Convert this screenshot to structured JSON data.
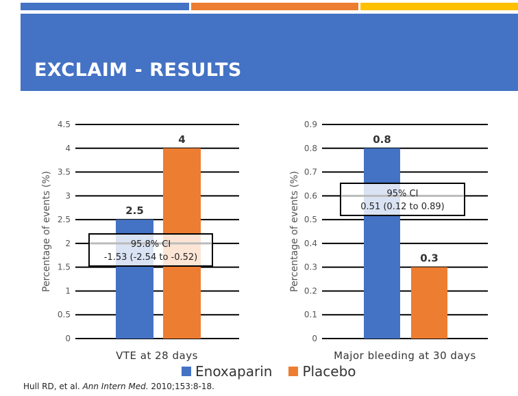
{
  "slide": {
    "title": "EXCLAIM - RESULTS"
  },
  "colors": {
    "accent_blue": "#4472C4",
    "accent_orange": "#ED7D31",
    "accent_yellow": "#FFC000",
    "enoxaparin": "#4472C4",
    "placebo": "#ED7D31"
  },
  "legend": [
    {
      "name": "Enoxaparin",
      "color": "#4472C4"
    },
    {
      "name": "Placebo",
      "color": "#ED7D31"
    }
  ],
  "citation": {
    "authors": "Hull RD, et al.",
    "journal": "Ann Intern Med.",
    "details": "2010;153:8-18."
  },
  "chart_data": [
    {
      "type": "bar",
      "title": "",
      "xlabel": "VTE at 28 days",
      "ylabel": "Percentage of events (%)",
      "ylim": [
        0,
        4.5
      ],
      "yticks": [
        0,
        0.5,
        1,
        1.5,
        2,
        2.5,
        3,
        3.5,
        4,
        4.5
      ],
      "ytick_labels": [
        "0",
        "0.5",
        "1",
        "1.5",
        "2",
        "2.5",
        "3",
        "3.5",
        "4",
        "4.5"
      ],
      "grid": true,
      "series": [
        {
          "name": "Enoxaparin",
          "value": 2.5,
          "label": "2.5"
        },
        {
          "name": "Placebo",
          "value": 4,
          "label": "4"
        }
      ],
      "annotation": {
        "line1": "95.8% CI",
        "line2": "-1.53 (-2.54 to -0.52)",
        "center_value": 2
      }
    },
    {
      "type": "bar",
      "title": "",
      "xlabel": "Major bleeding at 30 days",
      "ylabel": "Percentage of events (%)",
      "ylim": [
        0,
        0.9
      ],
      "yticks": [
        0,
        0.1,
        0.2,
        0.3,
        0.4,
        0.5,
        0.6,
        0.7,
        0.8,
        0.9
      ],
      "ytick_labels": [
        "0",
        "0.1",
        "0.2",
        "0.3",
        "0.4",
        "0.5",
        "0.6",
        "0.7",
        "0.8",
        "0.9"
      ],
      "grid": true,
      "series": [
        {
          "name": "Enoxaparin",
          "value": 0.8,
          "label": "0.8"
        },
        {
          "name": "Placebo",
          "value": 0.3,
          "label": "0.3"
        }
      ],
      "annotation": {
        "line1": "95% CI",
        "line2": "0.51 (0.12 to 0.89)",
        "center_value": 0.6
      }
    }
  ]
}
